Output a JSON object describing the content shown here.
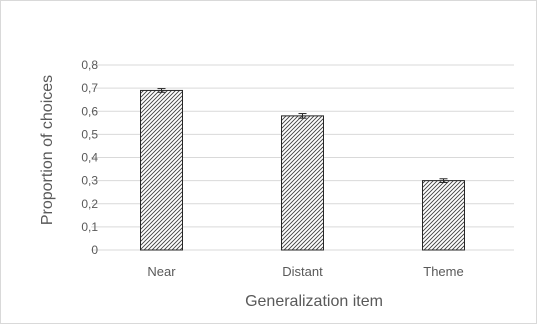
{
  "chart_data": {
    "type": "bar",
    "categories": [
      "Near",
      "Distant",
      "Theme"
    ],
    "values": [
      0.69,
      0.58,
      0.3
    ],
    "errors": [
      0.008,
      0.01,
      0.008
    ],
    "xlabel": "Generalization item",
    "ylabel": "Proportion of choices",
    "ylim": [
      0,
      0.8
    ],
    "yticks": [
      0,
      0.1,
      0.2,
      0.3,
      0.4,
      0.5,
      0.6,
      0.7,
      0.8
    ],
    "ytick_labels": [
      "0",
      "0,1",
      "0,2",
      "0,3",
      "0,4",
      "0,5",
      "0,6",
      "0,7",
      "0,8"
    ],
    "grid": true,
    "legend": "none",
    "bar_fill": "diagonal-hatch",
    "colors": {
      "bar_edge": "#262626",
      "hatch": "#404040",
      "grid": "#d9d9d9",
      "text": "#595959"
    }
  }
}
